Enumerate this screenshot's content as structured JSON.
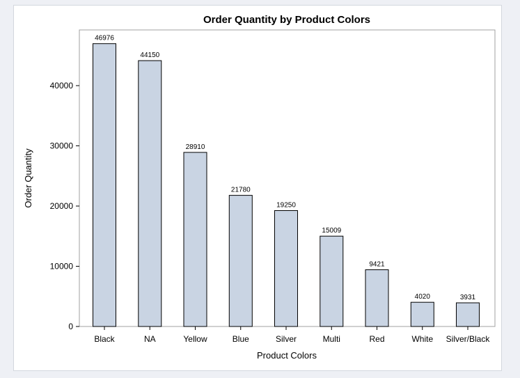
{
  "chart_data": {
    "type": "bar",
    "title": "Order Quantity by Product Colors",
    "xlabel": "Product Colors",
    "ylabel": "Order Quantity",
    "categories": [
      "Black",
      "NA",
      "Yellow",
      "Blue",
      "Silver",
      "Multi",
      "Red",
      "White",
      "Silver/Black"
    ],
    "values": [
      46976,
      44150,
      28910,
      21780,
      19250,
      15009,
      9421,
      4020,
      3931
    ],
    "data_labels": [
      "46976",
      "44150",
      "28910",
      "21780",
      "19250",
      "15009",
      "9421",
      "4020",
      "3931"
    ],
    "ylim": [
      0,
      49000
    ],
    "yticks": [
      0,
      10000,
      20000,
      30000,
      40000
    ],
    "ytick_labels": [
      "0",
      "10000",
      "20000",
      "30000",
      "40000"
    ],
    "grid": false,
    "bar_color": "#c9d4e3",
    "bar_outline": "#000000"
  }
}
